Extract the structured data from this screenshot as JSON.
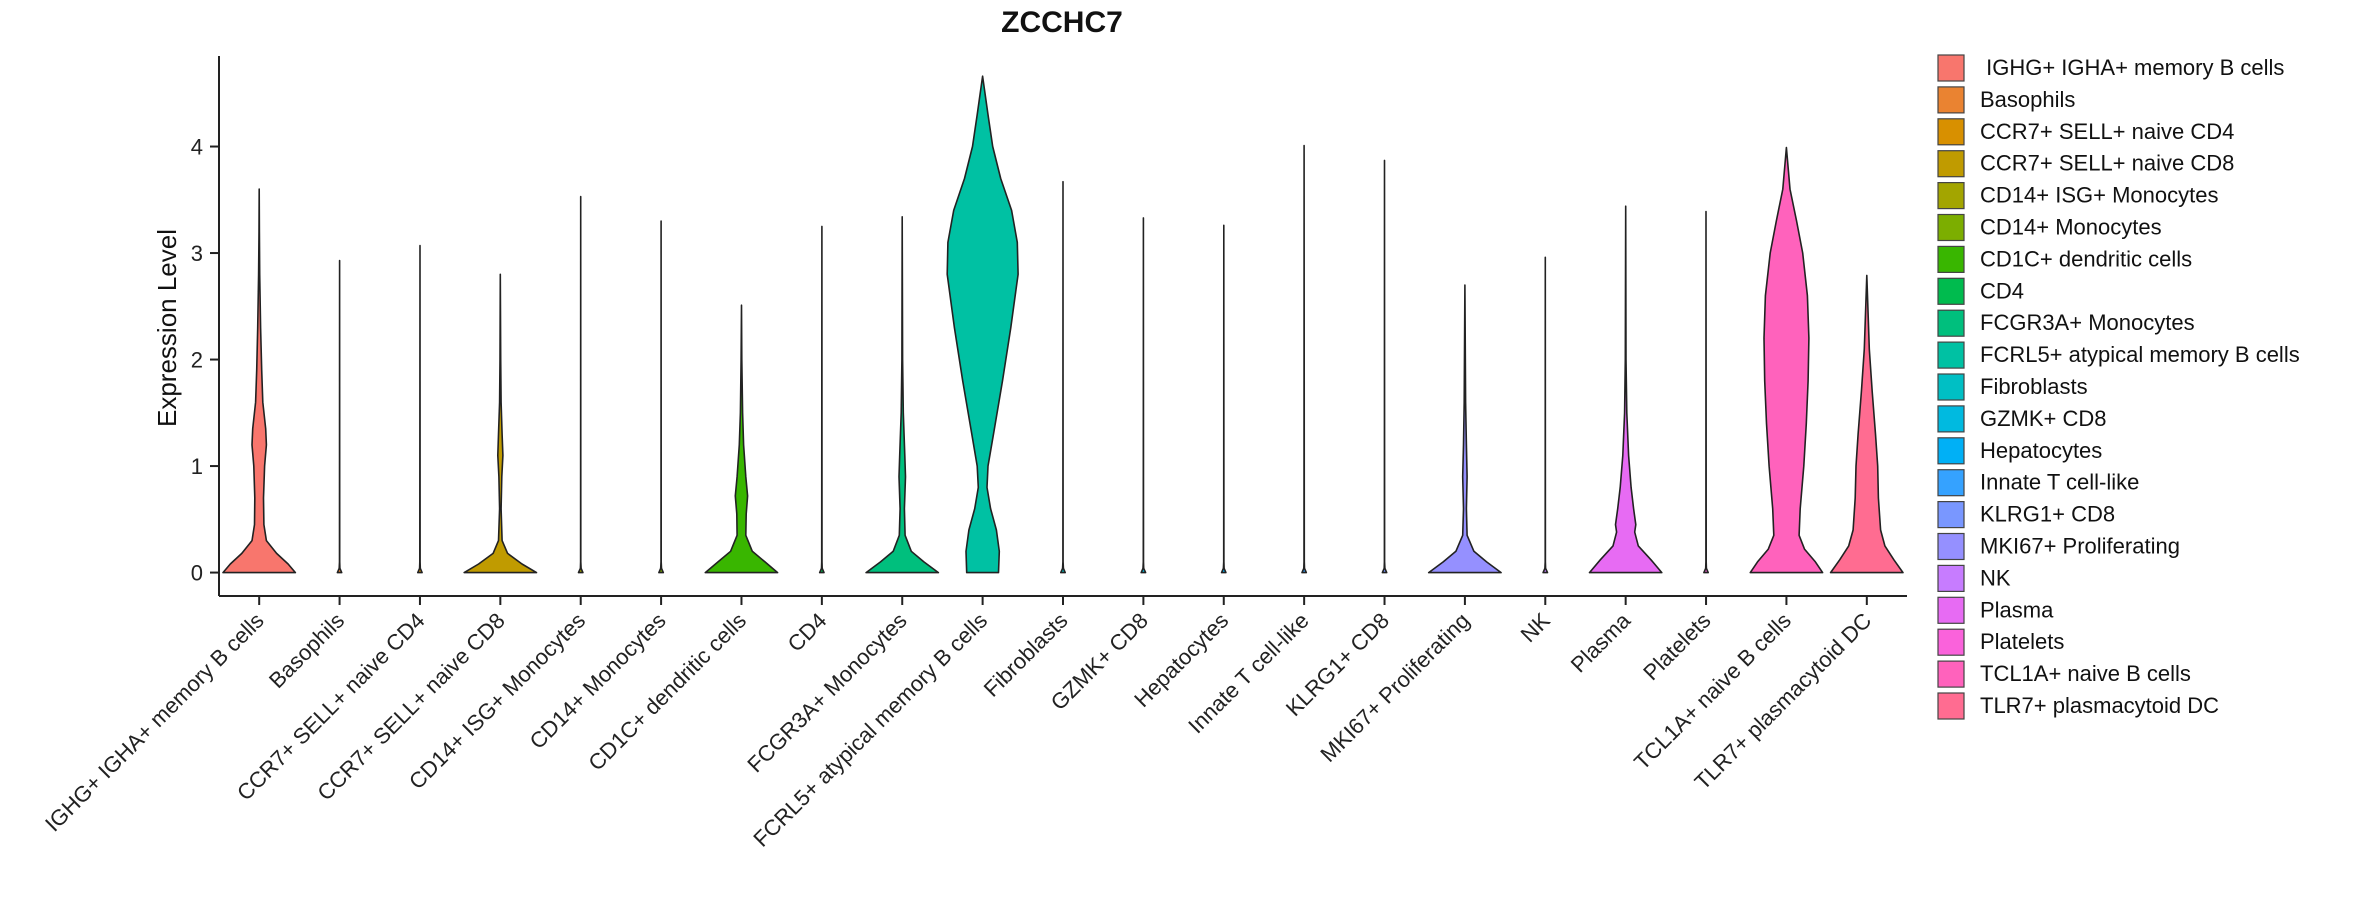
{
  "chart_data": {
    "type": "violin",
    "title": "ZCCHC7",
    "xlabel": "",
    "ylabel": "Expression Level",
    "ylim": [
      -0.22,
      4.85
    ],
    "yticks": [
      0,
      1,
      2,
      3,
      4
    ],
    "legend_position": "right",
    "categories": [
      {
        "name": "IGHG+ IGHA+ memory B cells",
        "legend_label": " IGHG+ IGHA+ memory B cells",
        "color": "#F8766D",
        "max": 3.6,
        "profile": [
          [
            0,
            1.0
          ],
          [
            0.08,
            0.8
          ],
          [
            0.18,
            0.48
          ],
          [
            0.3,
            0.2
          ],
          [
            0.45,
            0.13
          ],
          [
            0.7,
            0.12
          ],
          [
            1.0,
            0.15
          ],
          [
            1.2,
            0.2
          ],
          [
            1.35,
            0.18
          ],
          [
            1.6,
            0.1
          ],
          [
            1.9,
            0.07
          ],
          [
            2.3,
            0.04
          ],
          [
            2.8,
            0.015
          ],
          [
            3.2,
            0.005
          ],
          [
            3.6,
            0.0
          ]
        ]
      },
      {
        "name": "Basophils",
        "color": "#EA8331",
        "max": 2.93,
        "profile": [
          [
            0,
            0.06
          ],
          [
            0.04,
            0.01
          ],
          [
            0.1,
            0.003
          ],
          [
            2.93,
            0.0
          ]
        ]
      },
      {
        "name": "CCR7+ SELL+ naive CD4",
        "color": "#D89000",
        "max": 3.07,
        "profile": [
          [
            0,
            0.06
          ],
          [
            0.04,
            0.01
          ],
          [
            0.1,
            0.003
          ],
          [
            3.07,
            0.0
          ]
        ]
      },
      {
        "name": "CCR7+ SELL+ naive CD8",
        "color": "#C09B00",
        "max": 2.8,
        "profile": [
          [
            0,
            1.0
          ],
          [
            0.08,
            0.6
          ],
          [
            0.18,
            0.2
          ],
          [
            0.3,
            0.05
          ],
          [
            0.6,
            0.02
          ],
          [
            0.9,
            0.04
          ],
          [
            1.1,
            0.07
          ],
          [
            1.3,
            0.05
          ],
          [
            1.6,
            0.02
          ],
          [
            2.0,
            0.01
          ],
          [
            2.8,
            0.0
          ]
        ]
      },
      {
        "name": "CD14+ ISG+ Monocytes",
        "color": "#A3A500",
        "max": 3.53,
        "profile": [
          [
            0,
            0.06
          ],
          [
            0.04,
            0.01
          ],
          [
            0.1,
            0.003
          ],
          [
            3.53,
            0.0
          ]
        ]
      },
      {
        "name": "CD14+ Monocytes",
        "color": "#7CAE00",
        "max": 3.3,
        "profile": [
          [
            0,
            0.06
          ],
          [
            0.04,
            0.01
          ],
          [
            0.1,
            0.003
          ],
          [
            3.3,
            0.0
          ]
        ]
      },
      {
        "name": "CD1C+ dendritic cells",
        "color": "#39B600",
        "max": 2.51,
        "profile": [
          [
            0,
            1.0
          ],
          [
            0.1,
            0.65
          ],
          [
            0.2,
            0.3
          ],
          [
            0.35,
            0.12
          ],
          [
            0.55,
            0.13
          ],
          [
            0.72,
            0.17
          ],
          [
            0.9,
            0.12
          ],
          [
            1.2,
            0.06
          ],
          [
            1.5,
            0.03
          ],
          [
            2.0,
            0.01
          ],
          [
            2.51,
            0.0
          ]
        ]
      },
      {
        "name": "CD4",
        "color": "#00BB4E",
        "max": 3.25,
        "profile": [
          [
            0,
            0.06
          ],
          [
            0.04,
            0.01
          ],
          [
            0.1,
            0.003
          ],
          [
            3.25,
            0.0
          ]
        ]
      },
      {
        "name": "FCGR3A+ Monocytes",
        "color": "#00BF7D",
        "max": 3.34,
        "profile": [
          [
            0,
            1.0
          ],
          [
            0.1,
            0.6
          ],
          [
            0.2,
            0.25
          ],
          [
            0.35,
            0.08
          ],
          [
            0.6,
            0.06
          ],
          [
            0.9,
            0.09
          ],
          [
            1.1,
            0.07
          ],
          [
            1.5,
            0.03
          ],
          [
            2.0,
            0.01
          ],
          [
            3.34,
            0.0
          ]
        ]
      },
      {
        "name": "FCRL5+ atypical memory B cells",
        "color": "#00C1A3",
        "max": 4.66,
        "profile": [
          [
            0,
            0.44
          ],
          [
            0.2,
            0.46
          ],
          [
            0.4,
            0.38
          ],
          [
            0.6,
            0.22
          ],
          [
            0.8,
            0.12
          ],
          [
            1.0,
            0.15
          ],
          [
            1.3,
            0.3
          ],
          [
            1.8,
            0.55
          ],
          [
            2.3,
            0.78
          ],
          [
            2.8,
            0.98
          ],
          [
            3.1,
            0.96
          ],
          [
            3.4,
            0.8
          ],
          [
            3.7,
            0.5
          ],
          [
            4.0,
            0.28
          ],
          [
            4.3,
            0.15
          ],
          [
            4.66,
            0.0
          ]
        ]
      },
      {
        "name": "Fibroblasts",
        "color": "#00BFC4",
        "max": 3.67,
        "profile": [
          [
            0,
            0.06
          ],
          [
            0.04,
            0.01
          ],
          [
            0.1,
            0.003
          ],
          [
            3.67,
            0.0
          ]
        ]
      },
      {
        "name": "GZMK+ CD8",
        "color": "#00BAE0",
        "max": 3.33,
        "profile": [
          [
            0,
            0.06
          ],
          [
            0.04,
            0.01
          ],
          [
            0.1,
            0.003
          ],
          [
            3.33,
            0.0
          ]
        ]
      },
      {
        "name": "Hepatocytes",
        "color": "#00B0F6",
        "max": 3.26,
        "profile": [
          [
            0,
            0.06
          ],
          [
            0.04,
            0.01
          ],
          [
            0.1,
            0.003
          ],
          [
            3.26,
            0.0
          ]
        ]
      },
      {
        "name": "Innate T cell-like",
        "color": "#35A2FF",
        "max": 4.01,
        "profile": [
          [
            0,
            0.06
          ],
          [
            0.04,
            0.01
          ],
          [
            0.1,
            0.003
          ],
          [
            4.01,
            0.0
          ]
        ]
      },
      {
        "name": "KLRG1+ CD8",
        "color": "#7997FF",
        "max": 3.87,
        "profile": [
          [
            0,
            0.06
          ],
          [
            0.04,
            0.01
          ],
          [
            0.1,
            0.003
          ],
          [
            3.87,
            0.0
          ]
        ]
      },
      {
        "name": "MKI67+ Proliferating",
        "color": "#9590FF",
        "max": 2.7,
        "profile": [
          [
            0,
            1.0
          ],
          [
            0.1,
            0.6
          ],
          [
            0.2,
            0.25
          ],
          [
            0.35,
            0.06
          ],
          [
            0.6,
            0.04
          ],
          [
            0.9,
            0.06
          ],
          [
            1.2,
            0.04
          ],
          [
            1.6,
            0.02
          ],
          [
            2.7,
            0.0
          ]
        ]
      },
      {
        "name": "NK",
        "color": "#C77CFF",
        "max": 2.96,
        "profile": [
          [
            0,
            0.06
          ],
          [
            0.04,
            0.01
          ],
          [
            0.1,
            0.003
          ],
          [
            2.96,
            0.0
          ]
        ]
      },
      {
        "name": "Plasma",
        "color": "#E76BF3",
        "max": 3.44,
        "profile": [
          [
            0,
            1.0
          ],
          [
            0.12,
            0.7
          ],
          [
            0.25,
            0.35
          ],
          [
            0.38,
            0.25
          ],
          [
            0.45,
            0.28
          ],
          [
            0.6,
            0.22
          ],
          [
            0.8,
            0.15
          ],
          [
            1.1,
            0.08
          ],
          [
            1.5,
            0.03
          ],
          [
            2.0,
            0.01
          ],
          [
            3.44,
            0.0
          ]
        ]
      },
      {
        "name": "Platelets",
        "color": "#FA62DB",
        "max": 3.39,
        "profile": [
          [
            0,
            0.06
          ],
          [
            0.04,
            0.01
          ],
          [
            0.1,
            0.003
          ],
          [
            3.39,
            0.0
          ]
        ]
      },
      {
        "name": "TCL1A+ naive B cells",
        "color": "#FF62BC",
        "max": 3.99,
        "profile": [
          [
            0,
            1.0
          ],
          [
            0.1,
            0.8
          ],
          [
            0.22,
            0.5
          ],
          [
            0.35,
            0.35
          ],
          [
            0.6,
            0.38
          ],
          [
            1.0,
            0.48
          ],
          [
            1.4,
            0.55
          ],
          [
            1.8,
            0.6
          ],
          [
            2.2,
            0.62
          ],
          [
            2.6,
            0.58
          ],
          [
            3.0,
            0.45
          ],
          [
            3.3,
            0.28
          ],
          [
            3.6,
            0.1
          ],
          [
            3.99,
            0.0
          ]
        ]
      },
      {
        "name": "TLR7+ plasmacytoid DC",
        "color": "#FF6C91",
        "max": 2.79,
        "profile": [
          [
            0,
            1.0
          ],
          [
            0.12,
            0.75
          ],
          [
            0.25,
            0.5
          ],
          [
            0.4,
            0.38
          ],
          [
            0.7,
            0.32
          ],
          [
            1.0,
            0.3
          ],
          [
            1.3,
            0.24
          ],
          [
            1.7,
            0.15
          ],
          [
            2.1,
            0.07
          ],
          [
            2.79,
            0.0
          ]
        ]
      }
    ]
  }
}
